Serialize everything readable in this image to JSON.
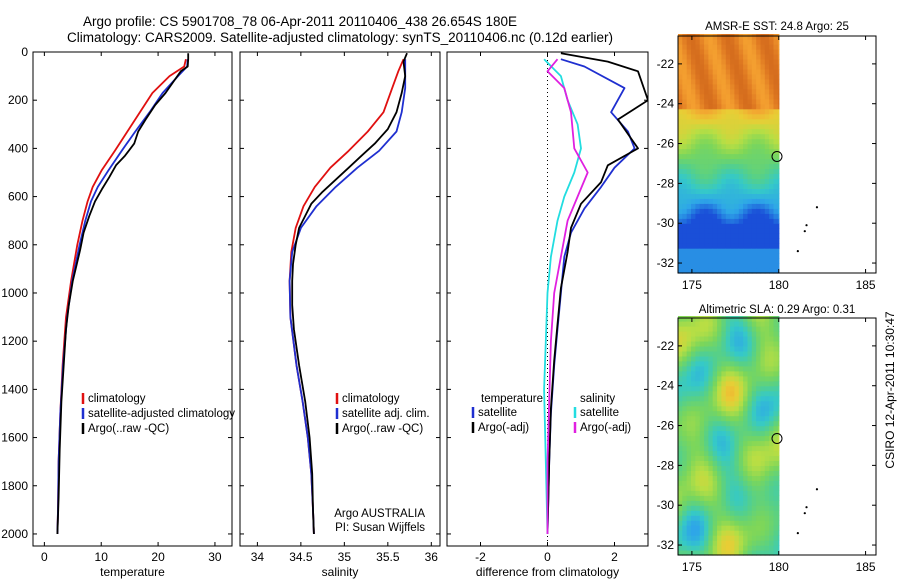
{
  "header": {
    "title_line1": "Argo profile: CS 5901708_78 06-Apr-2011 20110406_438 26.654S 180E",
    "title_line2": "Climatology: CARS2009. Satellite-adjusted climatology: synTS_20110406.nc (0.12d earlier)"
  },
  "side_label": "CSIRO 12-Apr-2011 10:30:47",
  "colors": {
    "clim": "#e01010",
    "sat": "#1f2fd0",
    "argo": "#000000",
    "cyan": "#22dde0",
    "magenta": "#e020e0"
  },
  "chart_data": [
    {
      "type": "line",
      "id": "temperature",
      "xlabel": "temperature",
      "ylabel": "",
      "xlim": [
        -2,
        33
      ],
      "ylim": [
        2050,
        0
      ],
      "xticks": [
        0,
        10,
        20,
        30
      ],
      "yticks": [
        0,
        200,
        400,
        600,
        800,
        1000,
        1200,
        1400,
        1600,
        1800,
        2000
      ],
      "legend": [
        "climatology",
        "satellite-adjusted climatology",
        "Argo(..raw -QC)"
      ],
      "legend_position": "lower-right",
      "series": [
        {
          "name": "climatology",
          "color_key": "clim",
          "x": [
            24.9,
            24.6,
            22,
            19,
            16.8,
            14.6,
            12.4,
            10.1,
            8.5,
            7.6,
            6.7,
            5.8,
            4.7,
            3.8,
            3.2,
            2.8,
            2.5,
            2.4,
            2.3
          ],
          "y": [
            30,
            60,
            100,
            170,
            250,
            330,
            410,
            490,
            560,
            620,
            700,
            800,
            950,
            1100,
            1300,
            1500,
            1700,
            1900,
            2000
          ]
        },
        {
          "name": "satellite-adjusted climatology",
          "color_key": "sat",
          "x": [
            25.2,
            25.1,
            23.5,
            20.8,
            18.5,
            16,
            13.6,
            11.3,
            9.4,
            8.2,
            7.2,
            6.2,
            4.9,
            4,
            3.3,
            2.8,
            2.5,
            2.4,
            2.3
          ],
          "y": [
            30,
            60,
            100,
            170,
            250,
            330,
            410,
            490,
            560,
            620,
            700,
            800,
            950,
            1100,
            1300,
            1500,
            1700,
            1900,
            2000
          ]
        },
        {
          "name": "Argo(..raw -QC)",
          "color_key": "argo",
          "x": [
            25.3,
            25.3,
            25.2,
            24,
            22.8,
            21.3,
            19.5,
            17.8,
            16.5,
            15.8,
            14.2,
            12.6,
            11.4,
            10.1,
            8.9,
            7.9,
            6.9,
            6.3,
            5.7,
            5,
            4.3,
            3.8,
            3.4,
            3,
            2.7,
            2.5,
            2.3
          ],
          "y": [
            5,
            30,
            60,
            80,
            120,
            170,
            220,
            280,
            330,
            380,
            430,
            470,
            520,
            570,
            620,
            680,
            750,
            820,
            880,
            950,
            1050,
            1150,
            1300,
            1450,
            1650,
            1850,
            2000
          ]
        }
      ]
    },
    {
      "type": "line",
      "id": "salinity",
      "xlabel": "salinity",
      "ylabel": "",
      "xlim": [
        33.8,
        36.1
      ],
      "ylim": [
        2050,
        0
      ],
      "xticks": [
        34,
        34.5,
        35,
        35.5,
        36
      ],
      "legend": [
        "climatology",
        "satellite adj. clim.",
        "Argo(..raw -QC)"
      ],
      "legend_position": "lower-right",
      "annotation": [
        "Argo AUSTRALIA",
        "PI: Susan Wijffels"
      ],
      "series": [
        {
          "name": "climatology",
          "color_key": "clim",
          "x": [
            35.68,
            35.62,
            35.55,
            35.45,
            35.27,
            35.05,
            34.84,
            34.66,
            34.53,
            34.44,
            34.39,
            34.37,
            34.38,
            34.45,
            34.52,
            34.58,
            34.62,
            34.64,
            34.65
          ],
          "y": [
            30,
            80,
            150,
            250,
            330,
            410,
            480,
            560,
            640,
            730,
            830,
            950,
            1100,
            1300,
            1450,
            1600,
            1750,
            1900,
            2000
          ]
        },
        {
          "name": "satellite adj. clim.",
          "color_key": "sat",
          "x": [
            35.7,
            35.7,
            35.7,
            35.66,
            35.6,
            35.4,
            35.15,
            34.9,
            34.68,
            34.5,
            34.4,
            34.37,
            34.38,
            34.45,
            34.52,
            34.58,
            34.62,
            34.64,
            34.65
          ],
          "y": [
            30,
            80,
            150,
            250,
            330,
            410,
            480,
            560,
            640,
            730,
            830,
            950,
            1100,
            1300,
            1450,
            1600,
            1750,
            1900,
            2000
          ]
        },
        {
          "name": "Argo(..raw -QC)",
          "color_key": "argo",
          "x": [
            35.72,
            35.68,
            35.7,
            35.66,
            35.6,
            35.5,
            35.35,
            35.2,
            35.05,
            34.9,
            34.75,
            34.62,
            34.55,
            34.48,
            34.44,
            34.41,
            34.4,
            34.4,
            34.42,
            34.48,
            34.55,
            34.6,
            34.63,
            34.64,
            34.65
          ],
          "y": [
            5,
            40,
            100,
            170,
            250,
            320,
            380,
            430,
            480,
            530,
            580,
            630,
            680,
            730,
            800,
            880,
            950,
            1050,
            1150,
            1300,
            1450,
            1600,
            1750,
            1900,
            2000
          ]
        }
      ]
    },
    {
      "type": "line",
      "id": "difference",
      "xlabel": "difference from climatology",
      "ylabel": "",
      "xlim": [
        -3,
        3
      ],
      "ylim": [
        2050,
        0
      ],
      "xticks": [
        -2,
        0,
        2
      ],
      "legend": [
        "temperature",
        "satellite",
        "Argo(-adj)",
        "salinity",
        "satellite",
        "Argo(-adj)"
      ],
      "legend_position": "lower-center",
      "series": [
        {
          "name": "temperature satellite",
          "color_key": "sat",
          "x": [
            0.4,
            1.1,
            2.3,
            1.9,
            2.4,
            2.6,
            2.0,
            1.6,
            1.1,
            0.7,
            0.5,
            0.4,
            0.3,
            0.2,
            0.1,
            0.05,
            0.0
          ],
          "y": [
            30,
            60,
            150,
            250,
            330,
            400,
            480,
            560,
            650,
            750,
            850,
            1000,
            1150,
            1300,
            1500,
            1700,
            2000
          ]
        },
        {
          "name": "temperature Argo(-adj)",
          "color_key": "argo",
          "x": [
            0.4,
            1.8,
            2.7,
            3.0,
            2.1,
            2.7,
            1.8,
            1.6,
            1.0,
            0.7,
            0.6,
            0.4,
            0.3,
            0.2,
            0.1,
            0.05,
            0.0
          ],
          "y": [
            5,
            40,
            80,
            200,
            280,
            400,
            470,
            540,
            630,
            730,
            830,
            980,
            1130,
            1280,
            1480,
            1700,
            2000
          ]
        },
        {
          "name": "salinity satellite",
          "color_key": "cyan",
          "x": [
            -0.1,
            0.4,
            0.6,
            0.9,
            1.0,
            0.8,
            0.5,
            0.3,
            0.1,
            0.0,
            -0.05,
            -0.1,
            -0.05,
            0.0
          ],
          "y": [
            30,
            100,
            200,
            300,
            400,
            500,
            600,
            700,
            850,
            1000,
            1200,
            1400,
            1700,
            2000
          ]
        },
        {
          "name": "salinity Argo(-adj)",
          "color_key": "magenta",
          "x": [
            0.3,
            0.0,
            0.5,
            0.7,
            0.8,
            1.2,
            0.9,
            0.6,
            0.4,
            0.2,
            0.1,
            0.05,
            0.0,
            0.0
          ],
          "y": [
            30,
            80,
            150,
            250,
            400,
            500,
            600,
            700,
            850,
            1000,
            1200,
            1450,
            1700,
            2000
          ]
        }
      ]
    },
    {
      "type": "heatmap",
      "id": "sst-map",
      "title": "AMSR-E SST: 24.8 Argo: 25",
      "xlim": [
        174.2,
        185.6
      ],
      "ylim": [
        -32.5,
        -20.6
      ],
      "xticks": [
        175,
        180,
        185
      ],
      "yticks": [
        -22,
        -24,
        -26,
        -28,
        -30,
        -32
      ],
      "data_xlim": [
        174.2,
        180
      ],
      "argo_position": [
        179.9,
        -26.65
      ],
      "coastline_points": [
        [
          182.2,
          -29.2
        ],
        [
          181.6,
          -30.1
        ],
        [
          181.5,
          -30.4
        ],
        [
          181.1,
          -31.4
        ]
      ],
      "color_scale": [
        "#1a4fd8",
        "#2ea6e8",
        "#35c9c8",
        "#55d08a",
        "#7cd65a",
        "#b8de44",
        "#e9cd35",
        "#f4a030",
        "#e07a22",
        "#c85e18"
      ]
    },
    {
      "type": "heatmap",
      "id": "sla-map",
      "title": "Altimetric SLA: 0.29 Argo: 0.31",
      "xlim": [
        174.2,
        185.6
      ],
      "ylim": [
        -32.5,
        -20.6
      ],
      "xticks": [
        175,
        180,
        185
      ],
      "yticks": [
        -22,
        -24,
        -26,
        -28,
        -30,
        -32
      ],
      "data_xlim": [
        174.2,
        180
      ],
      "argo_position": [
        179.9,
        -26.65
      ],
      "coastline_points": [
        [
          182.2,
          -29.2
        ],
        [
          181.6,
          -30.1
        ],
        [
          181.5,
          -30.4
        ],
        [
          181.1,
          -31.4
        ]
      ],
      "color_scale": [
        "#2ea6e8",
        "#35c9c8",
        "#55d08a",
        "#7cd65a",
        "#b8de44",
        "#e9cd35",
        "#f4a030"
      ]
    }
  ]
}
